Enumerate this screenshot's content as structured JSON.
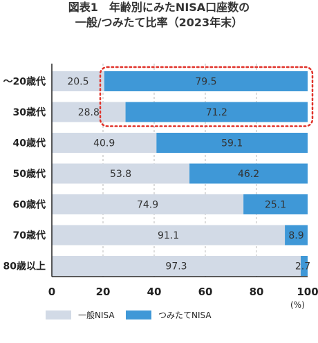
{
  "title_line1": "図表1　年齢別にみたNISA口座数の",
  "title_line2": "一般/つみたて比率（2023年末）",
  "unit_label": "(%)",
  "colors": {
    "general": "#d2dae6",
    "tsumitate": "#3f98d7",
    "highlight": "#e0322a",
    "axis": "#222222"
  },
  "chart_data": {
    "type": "bar",
    "orientation": "horizontal",
    "stacked": true,
    "categories": [
      "～20歳代",
      "30歳代",
      "40歳代",
      "50歳代",
      "60歳代",
      "70歳代",
      "80歳以上"
    ],
    "series": [
      {
        "name": "一般NISA",
        "values": [
          20.5,
          28.8,
          40.9,
          53.8,
          74.9,
          91.1,
          97.3
        ]
      },
      {
        "name": "つみたてNISA",
        "values": [
          79.5,
          71.2,
          59.1,
          46.2,
          25.1,
          8.9,
          2.7
        ]
      }
    ],
    "data_labels": [
      [
        "20.5",
        "28.8",
        "40.9",
        "53.8",
        "74.9",
        "91.1",
        "97.3"
      ],
      [
        "79.5",
        "71.2",
        "59.1",
        "46.2",
        "25.1",
        "8.9",
        "2.7"
      ]
    ],
    "xlim": [
      0,
      100
    ],
    "xticks": [
      "0",
      "20",
      "40",
      "60",
      "80",
      "100"
    ],
    "gridlines": true,
    "legend_position": "bottom",
    "highlight_categories": [
      "～20歳代",
      "30歳代"
    ]
  }
}
